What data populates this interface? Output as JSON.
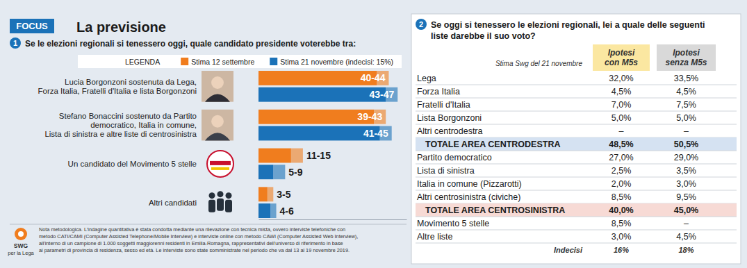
{
  "header": {
    "badge": "FOCUS",
    "title": "La previsione"
  },
  "chart_number": "1",
  "chart_data": {
    "type": "bar",
    "orientation": "horizontal",
    "title": "Se le elezioni regionali si tenessero oggi, quale candidato presidente voterebbe tra:",
    "legend": "top",
    "legend_title": "LEGENDA",
    "categories": [
      "Lucia Borgonzoni sostenuta da Lega,\nForza Italia, Fratelli d'Italia e lista Borgonzoni",
      "Stefano Bonaccini sostenuto da Partito\ndemocratico, Italia in comune,\nLista di sinistra e altre liste di centrosinistra",
      "Un candidato del Movimento 5 stelle",
      "Altri candidati"
    ],
    "series": [
      {
        "name": "Stima 12 settembre",
        "color": "#f07d1e",
        "values": [
          [
            40,
            44
          ],
          [
            39,
            43
          ],
          [
            11,
            15
          ],
          [
            3,
            5
          ]
        ],
        "value_labels": [
          "40-44",
          "39-43",
          "11-15",
          "3-5"
        ]
      },
      {
        "name": "Stima 21 novembre (indecisi: 15%)",
        "color": "#1b72b8",
        "values": [
          [
            43,
            47
          ],
          [
            41,
            45
          ],
          [
            5,
            9
          ],
          [
            4,
            6
          ]
        ],
        "value_labels": [
          "43-47",
          "41-45",
          "5-9",
          "4-6"
        ]
      }
    ],
    "xlim": [
      0,
      50
    ],
    "xticks": [],
    "tick_labels": false,
    "data_labels": true
  },
  "note": {
    "logo": "SWG",
    "logo_caption": "per la Lega",
    "lines": [
      "Nota metodologica. L'indagine quantitativa è stata condotta mediante una rilevazione con tecnica mista, ovvero interviste telefoniche con",
      "metodo CATI/CAMI (Computer Assisted Telephone/Mobile Interview) e interviste online con metodo CAWI (Computer Assisted Web Interview),",
      "all'interno di un campione di 1.000 soggetti maggiorenni residenti in Emilia-Romagna, rappresentativi dell'universo di riferimento in base",
      "ai parametri di provincia di residenza, sesso ed età. Le interviste sono state somministrate nel periodo che va dal 13 al 19 novembre 2019."
    ]
  },
  "table": {
    "number": "2",
    "title": "Se oggi si tenessero le elezioni regionali, lei a quale delle seguenti\nliste darebbe il suo voto?",
    "columns": [
      "Stima Swg del 21 novembre",
      "Ipotesi\ncon M5s",
      "Ipotesi\nsenza M5s"
    ],
    "colors": [
      "#fbe7a1",
      "#d9d9d9"
    ],
    "rows": [
      {
        "cells": [
          "Lega",
          "32,0%",
          "33,5%"
        ]
      },
      {
        "cells": [
          "Forza Italia",
          "4,5%",
          "4,5%"
        ]
      },
      {
        "cells": [
          "Fratelli d'Italia",
          "7,0%",
          "7,5%"
        ]
      },
      {
        "cells": [
          "Lista Borgonzoni",
          "5,0%",
          "5,0%"
        ]
      },
      {
        "cells": [
          "Altri centrodestra",
          "–",
          "–"
        ]
      },
      {
        "cells": [
          "TOTALE AREA CENTRODESTRA",
          "48,5%",
          "50,5%"
        ],
        "color": "#d5e2f2"
      },
      {
        "cells": [
          "Partito democratico",
          "27,0%",
          "29,0%"
        ]
      },
      {
        "cells": [
          "Lista di sinistra",
          "2,5%",
          "3,5%"
        ]
      },
      {
        "cells": [
          "Italia in comune (Pizzarotti)",
          "2,0%",
          "3,0%"
        ]
      },
      {
        "cells": [
          "Altri centrosinistra (civiche)",
          "8,5%",
          "9,5%"
        ]
      },
      {
        "cells": [
          "TOTALE AREA CENTROSINISTRA",
          "40,0%",
          "45,0%"
        ],
        "color": "#f7dad5"
      },
      {
        "cells": [
          "Movimento 5 stelle",
          "8,5%",
          "–"
        ]
      },
      {
        "cells": [
          "Altre liste",
          "3,0%",
          "4,5%"
        ]
      }
    ],
    "footer": [
      "Indecisi",
      "16%",
      "18%"
    ]
  }
}
